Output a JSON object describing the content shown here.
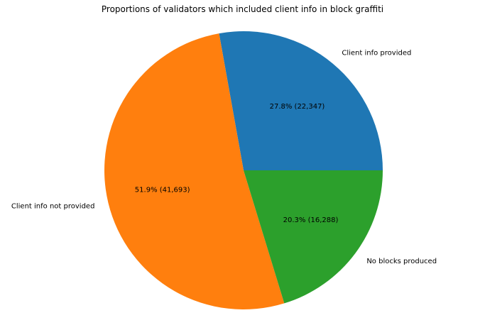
{
  "chart_data": {
    "type": "pie",
    "title": "Proportions of validators which included client info in block graffiti",
    "slices": [
      {
        "label": "Client info provided",
        "value": 22347,
        "percent_label": "27.8%  (22,347)",
        "color": "#1f77b4"
      },
      {
        "label": "Client info not provided",
        "value": 41693,
        "percent_label": "51.9%  (41,693)",
        "color": "#ff7f0e"
      },
      {
        "label": "No blocks produced",
        "value": 16288,
        "percent_label": "20.3%  (16,288)",
        "color": "#2ca02c"
      }
    ],
    "start_angle_deg": 0,
    "direction": "counterclockwise",
    "legend": "none"
  }
}
